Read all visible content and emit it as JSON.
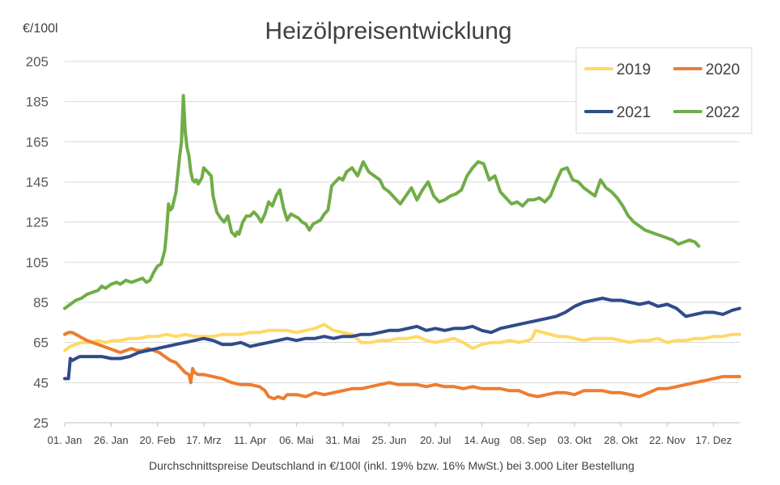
{
  "chart_data": {
    "type": "line",
    "title": "Heizölpreisentwicklung",
    "ylabel": "€/100l",
    "xlabel": "Durchschnittspreise Deutschland in €/100l (inkl. 19% bzw. 16%  MwSt.) bei 3.000 Liter Bestellung",
    "ylim": [
      25,
      205
    ],
    "yticks": [
      25,
      45,
      65,
      85,
      105,
      125,
      145,
      165,
      185,
      205
    ],
    "xlim": [
      0,
      364
    ],
    "xticks": [
      {
        "label": "01. Jan",
        "x": 0
      },
      {
        "label": "26. Jan",
        "x": 25
      },
      {
        "label": "20. Feb",
        "x": 50
      },
      {
        "label": "17. Mrz",
        "x": 75
      },
      {
        "label": "11. Apr",
        "x": 100
      },
      {
        "label": "06. Mai",
        "x": 125
      },
      {
        "label": "31. Mai",
        "x": 150
      },
      {
        "label": "25. Jun",
        "x": 175
      },
      {
        "label": "20. Jul",
        "x": 200
      },
      {
        "label": "14. Aug",
        "x": 225
      },
      {
        "label": "08. Sep",
        "x": 250
      },
      {
        "label": "03. Okt",
        "x": 275
      },
      {
        "label": "28. Okt",
        "x": 300
      },
      {
        "label": "22. Nov",
        "x": 325
      },
      {
        "label": "17. Dez",
        "x": 350
      }
    ],
    "grid": "horizontal",
    "legend_position": "top-right",
    "series": [
      {
        "name": "2019",
        "color": "#ffd966",
        "x": [
          0,
          3,
          6,
          9,
          14,
          18,
          22,
          26,
          30,
          35,
          40,
          45,
          50,
          55,
          60,
          65,
          70,
          75,
          80,
          85,
          90,
          95,
          100,
          105,
          110,
          115,
          120,
          125,
          130,
          135,
          140,
          145,
          150,
          155,
          160,
          165,
          170,
          175,
          180,
          185,
          190,
          195,
          200,
          205,
          210,
          215,
          220,
          225,
          230,
          235,
          240,
          245,
          250,
          252,
          254,
          258,
          262,
          266,
          270,
          275,
          280,
          285,
          290,
          295,
          300,
          305,
          310,
          315,
          320,
          325,
          330,
          335,
          340,
          345,
          350,
          355,
          360,
          364
        ],
        "y": [
          61,
          63,
          64,
          65,
          65,
          66,
          65,
          66,
          66,
          67,
          67,
          68,
          68,
          69,
          68,
          69,
          68,
          68,
          68,
          69,
          69,
          69,
          70,
          70,
          71,
          71,
          71,
          70,
          71,
          72,
          74,
          71,
          70,
          69,
          65,
          65,
          66,
          66,
          67,
          67,
          68,
          66,
          65,
          66,
          67,
          65,
          62,
          64,
          65,
          65,
          66,
          65,
          66,
          67,
          71,
          70,
          69,
          68,
          68,
          67,
          66,
          67,
          67,
          67,
          66,
          65,
          66,
          66,
          67,
          65,
          66,
          66,
          67,
          67,
          68,
          68,
          69,
          69
        ]
      },
      {
        "name": "2020",
        "color": "#ed7d31",
        "x": [
          0,
          2,
          4,
          6,
          8,
          10,
          12,
          15,
          18,
          21,
          24,
          27,
          30,
          33,
          36,
          39,
          42,
          45,
          48,
          51,
          54,
          57,
          60,
          63,
          65,
          67,
          68,
          69,
          70,
          72,
          75,
          80,
          85,
          90,
          95,
          100,
          105,
          108,
          110,
          113,
          115,
          118,
          120,
          125,
          130,
          135,
          140,
          145,
          150,
          155,
          160,
          165,
          170,
          175,
          180,
          185,
          190,
          195,
          200,
          205,
          210,
          215,
          220,
          225,
          230,
          235,
          240,
          245,
          250,
          255,
          260,
          265,
          270,
          275,
          280,
          285,
          290,
          295,
          300,
          305,
          310,
          315,
          320,
          325,
          330,
          335,
          340,
          345,
          350,
          355,
          360,
          364
        ],
        "y": [
          69,
          70,
          70,
          69,
          68,
          67,
          66,
          65,
          64,
          63,
          62,
          61,
          60,
          61,
          62,
          61,
          61,
          62,
          61,
          60,
          58,
          56,
          55,
          52,
          50,
          49,
          45,
          52,
          50,
          49,
          49,
          48,
          47,
          45,
          44,
          44,
          43,
          41,
          38,
          37,
          38,
          37,
          39,
          39,
          38,
          40,
          39,
          40,
          41,
          42,
          42,
          43,
          44,
          45,
          44,
          44,
          44,
          43,
          44,
          43,
          43,
          42,
          43,
          42,
          42,
          42,
          41,
          41,
          39,
          38,
          39,
          40,
          40,
          39,
          41,
          41,
          41,
          40,
          40,
          39,
          38,
          40,
          42,
          42,
          43,
          44,
          45,
          46,
          47,
          48,
          48,
          48
        ]
      },
      {
        "name": "2021",
        "color": "#2f4b8a",
        "x": [
          0,
          2,
          3,
          4,
          6,
          8,
          10,
          15,
          20,
          25,
          30,
          35,
          40,
          45,
          50,
          55,
          60,
          65,
          70,
          75,
          80,
          85,
          90,
          95,
          100,
          105,
          110,
          115,
          120,
          125,
          130,
          135,
          140,
          145,
          150,
          155,
          160,
          165,
          170,
          175,
          180,
          185,
          190,
          195,
          200,
          205,
          210,
          215,
          220,
          225,
          230,
          235,
          240,
          245,
          250,
          255,
          260,
          265,
          270,
          275,
          280,
          285,
          290,
          295,
          300,
          305,
          310,
          315,
          320,
          325,
          330,
          335,
          340,
          345,
          350,
          355,
          360,
          364
        ],
        "y": [
          47,
          47,
          57,
          56,
          57,
          58,
          58,
          58,
          58,
          57,
          57,
          58,
          60,
          61,
          62,
          63,
          64,
          65,
          66,
          67,
          66,
          64,
          64,
          65,
          63,
          64,
          65,
          66,
          67,
          66,
          67,
          67,
          68,
          67,
          68,
          68,
          69,
          69,
          70,
          71,
          71,
          72,
          73,
          71,
          72,
          71,
          72,
          72,
          73,
          71,
          70,
          72,
          73,
          74,
          75,
          76,
          77,
          78,
          80,
          83,
          85,
          86,
          87,
          86,
          86,
          85,
          84,
          85,
          83,
          84,
          82,
          78,
          79,
          80,
          80,
          79,
          81,
          82
        ]
      },
      {
        "name": "2022",
        "color": "#70ad47",
        "x": [
          0,
          3,
          6,
          9,
          12,
          15,
          18,
          20,
          22,
          25,
          28,
          30,
          33,
          36,
          39,
          42,
          44,
          46,
          48,
          50,
          52,
          54,
          55,
          56,
          57,
          58,
          60,
          62,
          63,
          64,
          65,
          66,
          67,
          68,
          69,
          70,
          71,
          72,
          74,
          75,
          77,
          79,
          80,
          81,
          82,
          84,
          86,
          88,
          90,
          92,
          93,
          94,
          96,
          98,
          100,
          102,
          104,
          106,
          108,
          110,
          112,
          114,
          116,
          118,
          120,
          122,
          124,
          126,
          128,
          130,
          132,
          134,
          136,
          138,
          140,
          142,
          144,
          146,
          148,
          150,
          152,
          155,
          158,
          161,
          164,
          167,
          170,
          172,
          175,
          178,
          181,
          184,
          187,
          190,
          193,
          196,
          199,
          202,
          205,
          208,
          211,
          214,
          217,
          220,
          223,
          226,
          229,
          232,
          235,
          238,
          241,
          244,
          247,
          250,
          253,
          256,
          259,
          262,
          265,
          268,
          271,
          274,
          277,
          280,
          283,
          286,
          289,
          292,
          295,
          298,
          301,
          304,
          307,
          310,
          313,
          316,
          319,
          322,
          325,
          328,
          331,
          334,
          337,
          340,
          342
        ],
        "y": [
          82,
          84,
          86,
          87,
          89,
          90,
          91,
          93,
          92,
          94,
          95,
          94,
          96,
          95,
          96,
          97,
          95,
          96,
          100,
          103,
          104,
          111,
          121,
          134,
          131,
          132,
          140,
          158,
          165,
          188,
          170,
          162,
          158,
          150,
          146,
          145,
          146,
          144,
          147,
          152,
          150,
          148,
          138,
          134,
          130,
          127,
          125,
          128,
          120,
          118,
          120,
          119,
          125,
          128,
          128,
          130,
          128,
          125,
          129,
          135,
          133,
          138,
          141,
          132,
          126,
          129,
          128,
          127,
          125,
          124,
          121,
          124,
          125,
          126,
          129,
          131,
          143,
          145,
          147,
          146,
          150,
          152,
          148,
          155,
          150,
          148,
          146,
          142,
          140,
          137,
          134,
          138,
          142,
          136,
          141,
          145,
          138,
          135,
          136,
          138,
          139,
          141,
          148,
          152,
          155,
          154,
          146,
          148,
          140,
          137,
          134,
          135,
          133,
          136,
          136,
          137,
          135,
          138,
          145,
          151,
          152,
          146,
          145,
          142,
          140,
          138,
          146,
          142,
          140,
          137,
          133,
          128,
          125,
          123,
          121,
          120,
          119,
          118,
          117,
          116,
          114,
          115,
          116,
          115,
          113
        ]
      }
    ],
    "legend": [
      {
        "label": "2019",
        "color": "#ffd966"
      },
      {
        "label": "2020",
        "color": "#ed7d31"
      },
      {
        "label": "2021",
        "color": "#2f4b8a"
      },
      {
        "label": "2022",
        "color": "#70ad47"
      }
    ]
  }
}
